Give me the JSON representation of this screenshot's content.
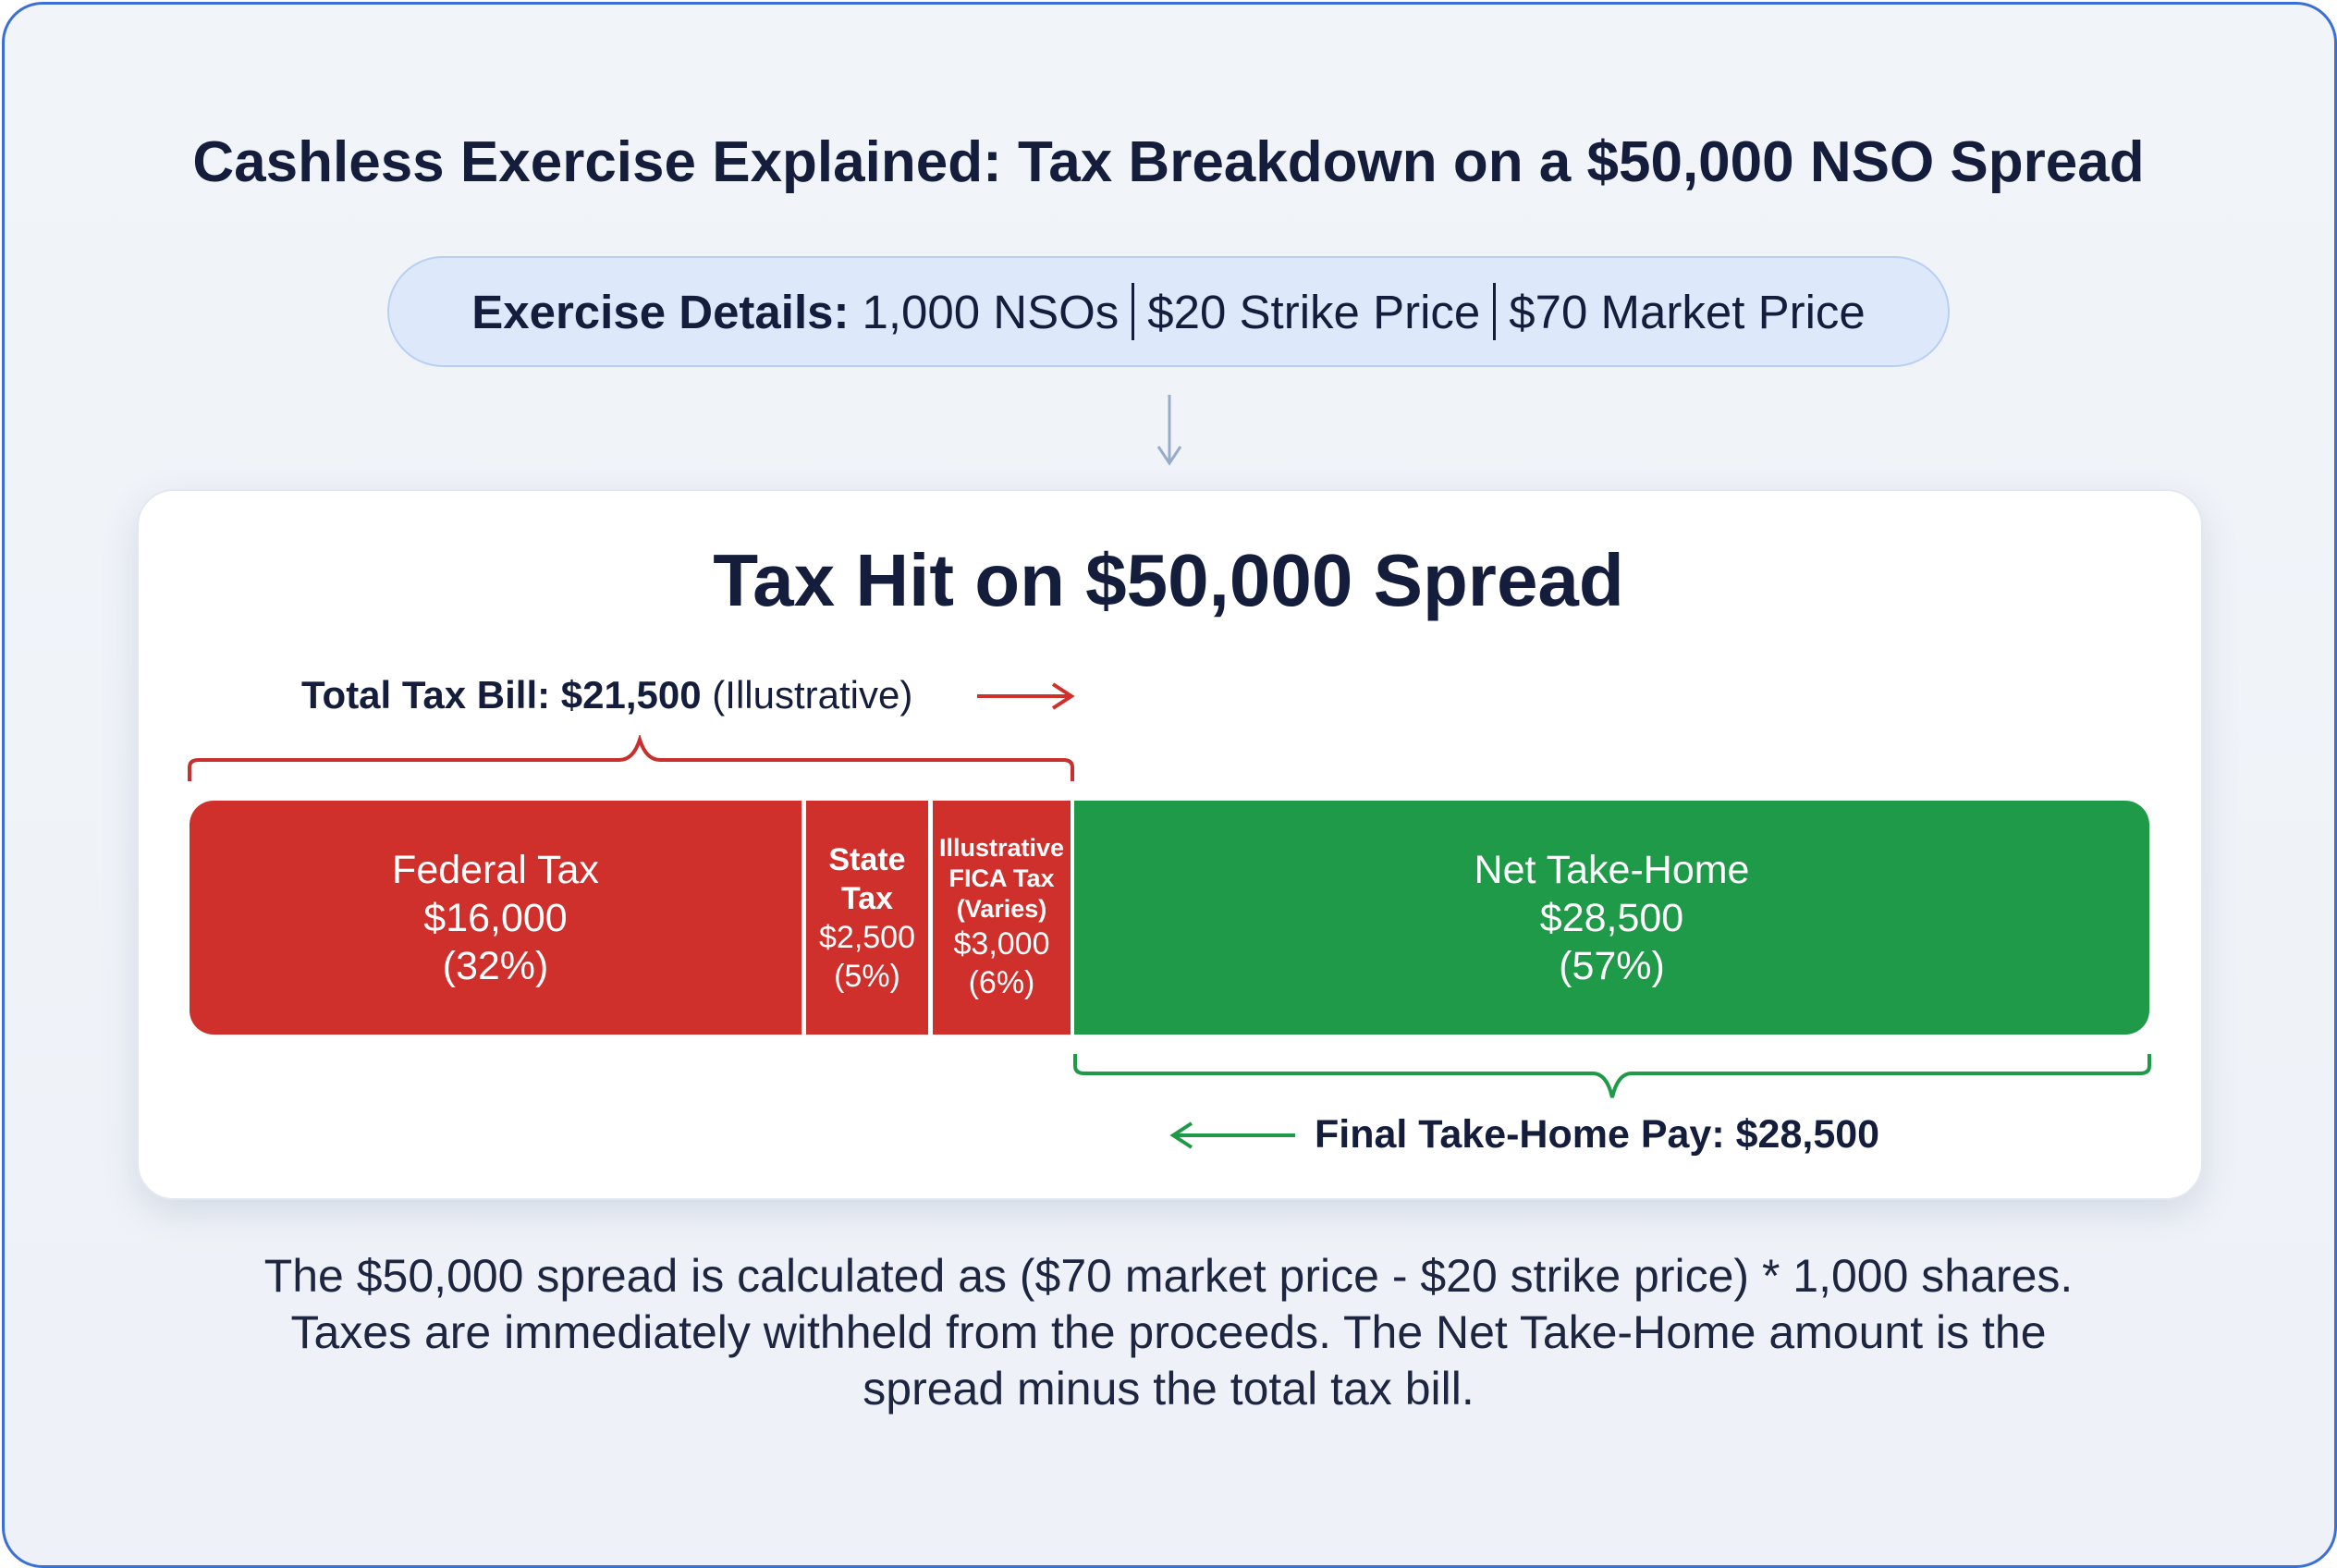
{
  "title": "Cashless Exercise Explained: Tax Breakdown on a $50,000 NSO Spread",
  "exercise_details": {
    "label": "Exercise Details:",
    "items": [
      "1,000 NSOs",
      "$20 Strike Price",
      "$70 Market Price"
    ]
  },
  "card": {
    "title": "Tax Hit on $50,000 Spread",
    "total_tax": {
      "label": "Total Tax Bill:",
      "value": "$21,500",
      "note": "(Illustrative)"
    },
    "segments": [
      {
        "name": "Federal Tax",
        "amount": "$16,000",
        "percent": "(32%)",
        "value": 16000
      },
      {
        "name_line1": "State",
        "name_line2": "Tax",
        "amount": "$2,500",
        "percent": "(5%)",
        "value": 2500
      },
      {
        "name_line1": "Illustrative",
        "name_line2": "FICA Tax",
        "name_line3": "(Varies)",
        "amount": "$3,000",
        "percent": "(6%)",
        "value": 3000
      },
      {
        "name": "Net Take-Home",
        "amount": "$28,500",
        "percent": "(57%)",
        "value": 28500
      }
    ],
    "final": {
      "label": "Final Take-Home Pay:",
      "value": "$28,500"
    }
  },
  "colors": {
    "tax": "#d0302c",
    "net": "#1f9a48",
    "accent": "#3b6fd8"
  },
  "footer": "The $50,000 spread is calculated as ($70 market price - $20 strike price) * 1,000 shares. Taxes are immediately withheld from the proceeds. The Net Take-Home amount is the spread minus the total tax bill."
}
